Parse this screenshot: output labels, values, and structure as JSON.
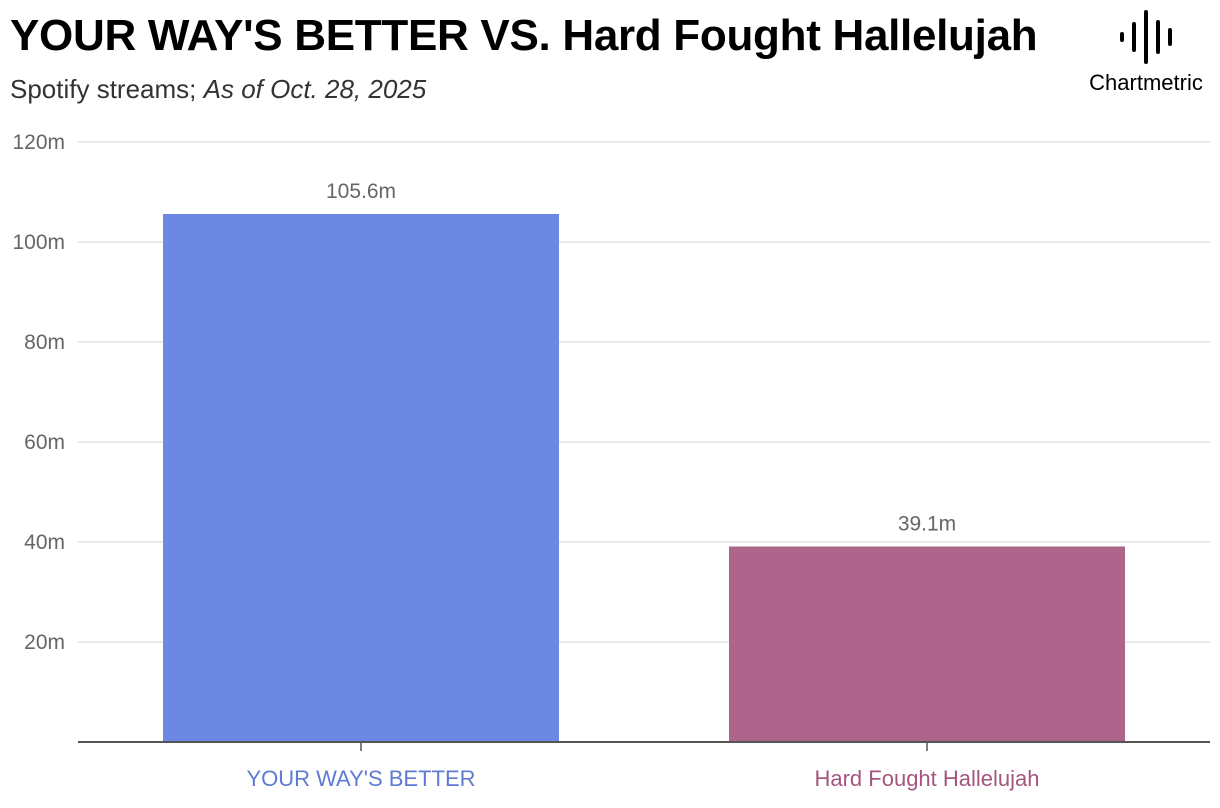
{
  "header": {
    "title": "YOUR WAY'S BETTER VS. Hard Fought Hallelujah",
    "subtitle_prefix": "Spotify streams; ",
    "subtitle_note": "As of Oct. 28, 2025"
  },
  "logo": {
    "text": "Chartmetric",
    "icon": "soundwave-icon"
  },
  "colors": {
    "bar_1": "#6b88e2",
    "bar_2": "#ae658c",
    "label_1": "#5f7bd1",
    "label_2": "#a4567f",
    "grid": "#e3e3e3",
    "axis": "#555555"
  },
  "chart_data": {
    "type": "bar",
    "title": "YOUR WAY'S BETTER VS. Hard Fought Hallelujah",
    "subtitle": "Spotify streams; As of Oct. 28, 2025",
    "categories": [
      "YOUR WAY'S BETTER",
      "Hard Fought Hallelujah"
    ],
    "values": [
      105.6,
      39.1
    ],
    "data_labels": [
      "105.6m",
      "39.1m"
    ],
    "ylim": [
      0,
      120
    ],
    "yticks": [
      20,
      40,
      60,
      80,
      100,
      120
    ],
    "ytick_labels": [
      "20m",
      "40m",
      "60m",
      "80m",
      "100m",
      "120m"
    ],
    "xlabel": "",
    "ylabel": "",
    "grid": true,
    "legend": "none"
  }
}
